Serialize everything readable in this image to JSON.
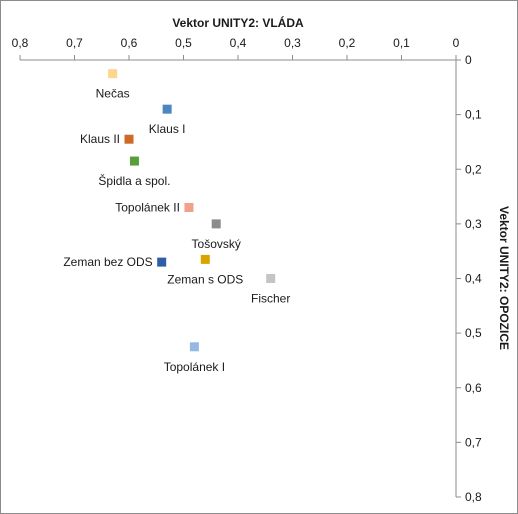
{
  "chart_data": {
    "type": "scatter",
    "xlabel": "Vektor UNITY2: VLÁDA",
    "ylabel": "Vektor UNITY2: OPOZICE",
    "xlim": [
      0,
      0.8
    ],
    "ylim": [
      0,
      0.8
    ],
    "x_reversed": true,
    "y_reversed": true,
    "x_axis_position": "top",
    "y_axis_position": "right",
    "grid": false,
    "legend": "none",
    "x_ticks": [
      "0,8",
      "0,7",
      "0,6",
      "0,5",
      "0,4",
      "0,3",
      "0,2",
      "0,1",
      "0"
    ],
    "y_ticks": [
      "0",
      "0,1",
      "0,2",
      "0,3",
      "0,4",
      "0,5",
      "0,6",
      "0,7",
      "0,8"
    ],
    "points": [
      {
        "label": "Nečas",
        "x": 0.63,
        "y": 0.025,
        "color": "#fdd58c",
        "label_pos": "below"
      },
      {
        "label": "Klaus I",
        "x": 0.53,
        "y": 0.09,
        "color": "#4a86c0",
        "label_pos": "below"
      },
      {
        "label": "Klaus II",
        "x": 0.6,
        "y": 0.145,
        "color": "#cc6a28",
        "label_pos": "left"
      },
      {
        "label": "Špidla a spol.",
        "x": 0.59,
        "y": 0.185,
        "color": "#5a9e3a",
        "label_pos": "below"
      },
      {
        "label": "Topolánek II",
        "x": 0.49,
        "y": 0.27,
        "color": "#efa18a",
        "label_pos": "left"
      },
      {
        "label": "Tošovský",
        "x": 0.44,
        "y": 0.3,
        "color": "#8c8c8c",
        "label_pos": "below"
      },
      {
        "label": "Zeman bez ODS",
        "x": 0.54,
        "y": 0.37,
        "color": "#2e5fa6",
        "label_pos": "left"
      },
      {
        "label": "Zeman s ODS",
        "x": 0.46,
        "y": 0.365,
        "color": "#dba300",
        "label_pos": "below"
      },
      {
        "label": "Fischer",
        "x": 0.34,
        "y": 0.4,
        "color": "#c4c4c4",
        "label_pos": "below"
      },
      {
        "label": "Topolánek I",
        "x": 0.48,
        "y": 0.525,
        "color": "#95b7e2",
        "label_pos": "below"
      }
    ]
  }
}
